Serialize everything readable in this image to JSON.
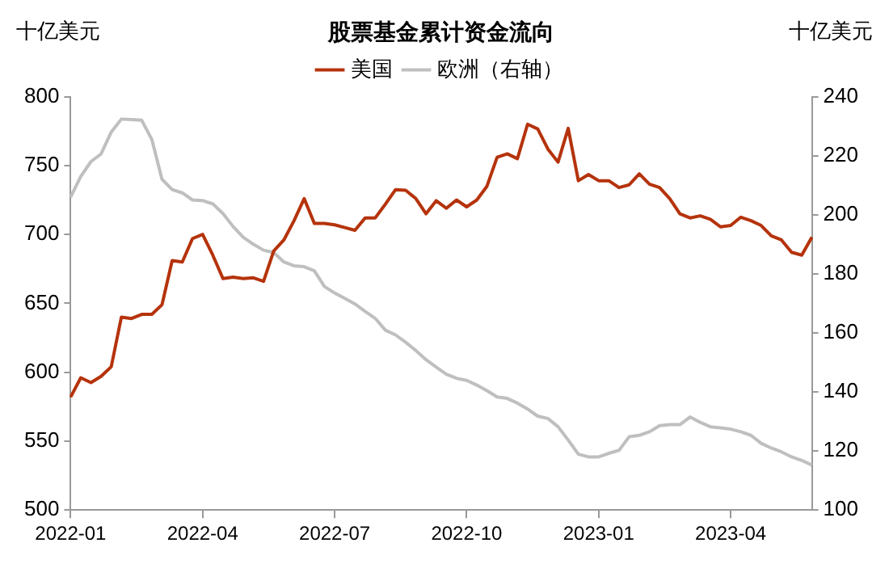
{
  "chart_data": {
    "type": "line",
    "title": "股票基金累计资金流向",
    "ylabel": "十亿美元",
    "y2label": "十亿美元",
    "categories": [
      "2022-01",
      null,
      null,
      null,
      null,
      null,
      null,
      null,
      null,
      null,
      null,
      null,
      null,
      "2022-04",
      null,
      null,
      null,
      null,
      null,
      null,
      null,
      null,
      null,
      null,
      null,
      null,
      "2022-07",
      null,
      null,
      null,
      null,
      null,
      null,
      null,
      null,
      null,
      null,
      null,
      null,
      "2022-10",
      null,
      null,
      null,
      null,
      null,
      null,
      null,
      null,
      null,
      null,
      null,
      null,
      "2023-01",
      null,
      null,
      null,
      null,
      null,
      null,
      null,
      null,
      null,
      null,
      null,
      null,
      "2023-04",
      null,
      null,
      null,
      null,
      null,
      null,
      null,
      null
    ],
    "series": [
      {
        "name": "美国",
        "color": "#b5330c",
        "values": [
          582,
          596,
          592.5,
          597,
          604,
          640,
          639,
          642,
          642,
          649,
          681,
          680,
          697,
          700,
          685,
          668,
          669,
          668,
          668.5,
          666,
          688,
          696,
          710,
          726,
          708,
          708,
          707,
          705,
          703,
          712,
          712,
          722,
          732.5,
          732,
          726,
          715,
          724.5,
          719,
          725,
          720,
          725,
          735,
          756,
          758.5,
          755,
          780,
          776.5,
          762,
          752.5,
          777,
          739,
          743.5,
          739,
          739,
          734,
          736,
          744,
          736.5,
          734,
          726,
          715,
          712,
          713.5,
          711,
          705.5,
          706.5,
          712.5,
          710,
          706.5,
          699,
          696,
          687,
          685,
          698
        ]
      },
      {
        "name": "欧洲（右轴）",
        "color": "#bfbfbf",
        "axis": "y2",
        "values": [
          206,
          213,
          218,
          220.6,
          228,
          232.4,
          232.2,
          232,
          225.5,
          212,
          208.5,
          207.4,
          205,
          204.8,
          203.7,
          200.4,
          196,
          192.4,
          190,
          188,
          187.2,
          184,
          182.7,
          182.4,
          181,
          175.7,
          173.5,
          171.7,
          169.8,
          167.3,
          164.9,
          160.9,
          159.3,
          156.8,
          154,
          150.9,
          148.4,
          146,
          144.6,
          143.9,
          142.3,
          140.4,
          138.3,
          137.8,
          136.2,
          134.2,
          131.8,
          131,
          128.2,
          123.7,
          118.9,
          118,
          118,
          119.2,
          120.2,
          124.8,
          125.3,
          126.5,
          128.6,
          128.9,
          128.9,
          131.5,
          129.7,
          128.2,
          127.8,
          127.4,
          126.5,
          125.3,
          122.6,
          121,
          119.7,
          118,
          116.8,
          115.2
        ]
      }
    ],
    "ylim": [
      500,
      800
    ],
    "yticks": [
      500,
      550,
      600,
      650,
      700,
      750,
      800
    ],
    "y2lim": [
      100,
      240
    ],
    "y2ticks": [
      100,
      120,
      140,
      160,
      180,
      200,
      220,
      240
    ],
    "grid": false,
    "legend": "top",
    "marker": "none",
    "line_style": "solid"
  }
}
